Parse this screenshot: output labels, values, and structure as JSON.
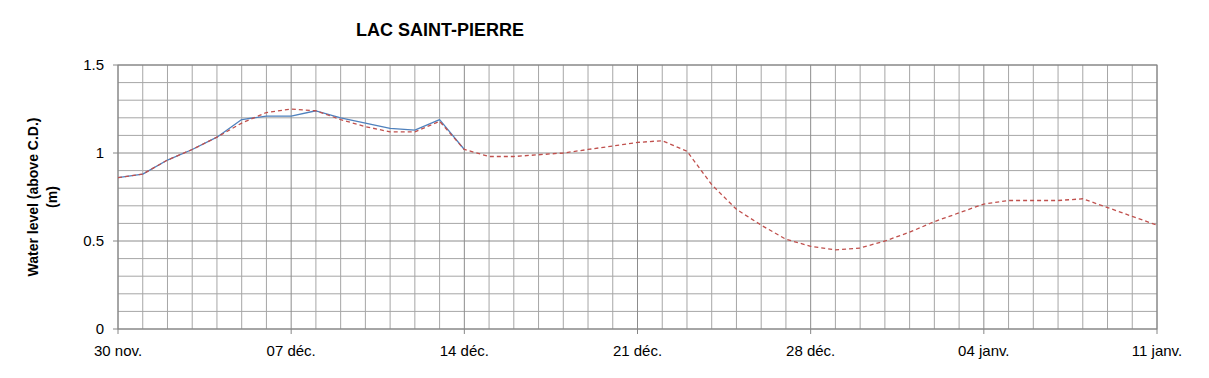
{
  "chart_data": {
    "type": "line",
    "title": "LAC SAINT-PIERRE",
    "ylabel": [
      "Water level (above C.D.)",
      "(m)"
    ],
    "xlim": [
      0,
      42
    ],
    "xticks": [
      {
        "value": 0,
        "label": "30 nov."
      },
      {
        "value": 7,
        "label": "07 déc."
      },
      {
        "value": 14,
        "label": "14 déc."
      },
      {
        "value": 21,
        "label": "21 déc."
      },
      {
        "value": 28,
        "label": "28 déc."
      },
      {
        "value": 35,
        "label": "04 janv."
      },
      {
        "value": 42,
        "label": "11 janv."
      }
    ],
    "ylim": [
      0,
      1.5
    ],
    "yticks": [
      0,
      0.5,
      1,
      1.5
    ],
    "grid": true,
    "series": [
      {
        "color": "#4f81bd",
        "line_style": "solid",
        "x": [
          0,
          1,
          2,
          3,
          4,
          5,
          6,
          7,
          8,
          9,
          10,
          11,
          12,
          13,
          14
        ],
        "values": [
          0.86,
          0.88,
          0.96,
          1.02,
          1.09,
          1.19,
          1.21,
          1.21,
          1.24,
          1.2,
          1.17,
          1.14,
          1.13,
          1.19,
          1.02
        ]
      },
      {
        "color": "#c0504d",
        "line_style": "dashed",
        "x": [
          0,
          1,
          2,
          3,
          4,
          5,
          6,
          7,
          8,
          9,
          10,
          11,
          12,
          13,
          14,
          15,
          16,
          17,
          18,
          19,
          20,
          21,
          22,
          23,
          24,
          25,
          26,
          27,
          28,
          29,
          30,
          31,
          32,
          33,
          34,
          35,
          36,
          37,
          38,
          39,
          40,
          41,
          42
        ],
        "values": [
          0.86,
          0.88,
          0.96,
          1.02,
          1.09,
          1.17,
          1.23,
          1.25,
          1.24,
          1.19,
          1.15,
          1.12,
          1.12,
          1.18,
          1.02,
          0.98,
          0.98,
          0.99,
          1.0,
          1.02,
          1.04,
          1.06,
          1.07,
          1.01,
          0.82,
          0.68,
          0.59,
          0.51,
          0.47,
          0.45,
          0.46,
          0.5,
          0.55,
          0.61,
          0.66,
          0.71,
          0.73,
          0.73,
          0.73,
          0.74,
          0.69,
          0.64,
          0.59
        ]
      }
    ]
  }
}
